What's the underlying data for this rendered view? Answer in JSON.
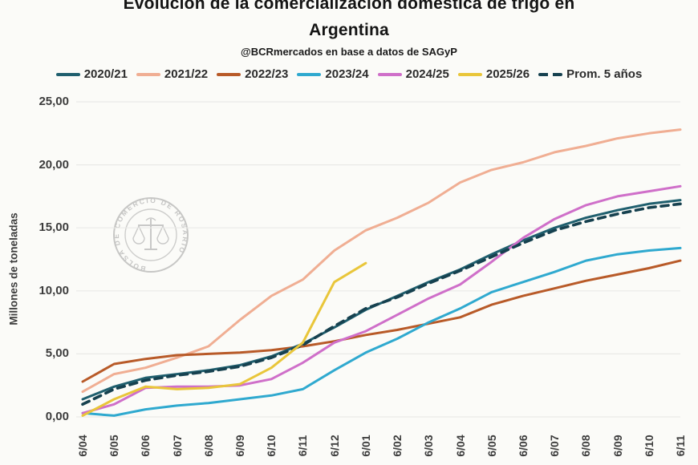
{
  "header": {
    "title_line1": "Evolución de la comercialización doméstica de trigo en",
    "title_line2": "Argentina",
    "subtitle": "@BCRmercados en base a datos de SAGyP"
  },
  "watermark": {
    "text": "BOLSA DE COMERCIO DE ROSARIO"
  },
  "colors": {
    "background": "#fbfbf8",
    "gridline": "#eaeae7",
    "axis_text": "#3c3c3c"
  },
  "chart_data": {
    "type": "line",
    "title": "Evolución de la comercialización doméstica de trigo en Argentina",
    "subtitle": "@BCRmercados en base a datos de SAGyP",
    "xlabel": "",
    "ylabel": "Millones de toneladas",
    "ylim": [
      0,
      25
    ],
    "grid": "horizontal",
    "legend_position": "top",
    "y_ticks": [
      {
        "label": "0,00",
        "value": 0
      },
      {
        "label": "5,00",
        "value": 5
      },
      {
        "label": "10,00",
        "value": 10
      },
      {
        "label": "15,00",
        "value": 15
      },
      {
        "label": "20,00",
        "value": 20
      },
      {
        "label": "25,00",
        "value": 25
      }
    ],
    "categories": [
      "6/04",
      "6/05",
      "6/06",
      "6/07",
      "6/08",
      "6/09",
      "6/10",
      "6/11",
      "6/12",
      "6/01",
      "6/02",
      "6/03",
      "6/04",
      "6/05",
      "6/06",
      "6/07",
      "6/08",
      "6/09",
      "6/10",
      "6/11"
    ],
    "series": [
      {
        "name": "2020/21",
        "color": "#1f5f6e",
        "dashed": false,
        "values": [
          1.4,
          2.4,
          3.1,
          3.4,
          3.7,
          4.1,
          4.8,
          5.8,
          7.1,
          8.5,
          9.6,
          10.7,
          11.7,
          12.9,
          14.0,
          15.0,
          15.8,
          16.4,
          16.9,
          17.2
        ]
      },
      {
        "name": "2021/22",
        "color": "#f0ae93",
        "dashed": false,
        "values": [
          2.0,
          3.4,
          3.9,
          4.7,
          5.6,
          7.7,
          9.6,
          10.9,
          13.2,
          14.8,
          15.8,
          17.0,
          18.6,
          19.6,
          20.2,
          21.0,
          21.5,
          22.1,
          22.5,
          22.8
        ]
      },
      {
        "name": "2022/23",
        "color": "#b85a28",
        "dashed": false,
        "values": [
          2.8,
          4.2,
          4.6,
          4.9,
          5.0,
          5.1,
          5.3,
          5.6,
          6.0,
          6.5,
          6.9,
          7.4,
          7.9,
          8.9,
          9.6,
          10.2,
          10.8,
          11.3,
          11.8,
          12.4
        ]
      },
      {
        "name": "2023/24",
        "color": "#2fa9cf",
        "dashed": false,
        "values": [
          0.3,
          0.1,
          0.6,
          0.9,
          1.1,
          1.4,
          1.7,
          2.2,
          3.7,
          5.1,
          6.2,
          7.5,
          8.6,
          9.9,
          10.7,
          11.5,
          12.4,
          12.9,
          13.2,
          13.4
        ]
      },
      {
        "name": "2024/25",
        "color": "#cf6fc9",
        "dashed": false,
        "values": [
          0.3,
          1.0,
          2.3,
          2.4,
          2.4,
          2.5,
          3.0,
          4.3,
          5.9,
          6.8,
          8.1,
          9.4,
          10.5,
          12.3,
          14.2,
          15.7,
          16.8,
          17.5,
          17.9,
          18.3
        ]
      },
      {
        "name": "2025/26",
        "color": "#e9c63a",
        "dashed": false,
        "values": [
          0.1,
          1.4,
          2.4,
          2.2,
          2.3,
          2.6,
          3.9,
          5.9,
          10.7,
          12.2,
          null,
          null,
          null,
          null,
          null,
          null,
          null,
          null,
          null,
          null
        ]
      },
      {
        "name": "Prom. 5 años",
        "color": "#16414f",
        "dashed": true,
        "values": [
          1.0,
          2.2,
          2.9,
          3.3,
          3.6,
          4.0,
          4.7,
          5.7,
          7.2,
          8.6,
          9.5,
          10.6,
          11.6,
          12.7,
          13.8,
          14.8,
          15.5,
          16.1,
          16.6,
          16.9
        ]
      }
    ]
  }
}
